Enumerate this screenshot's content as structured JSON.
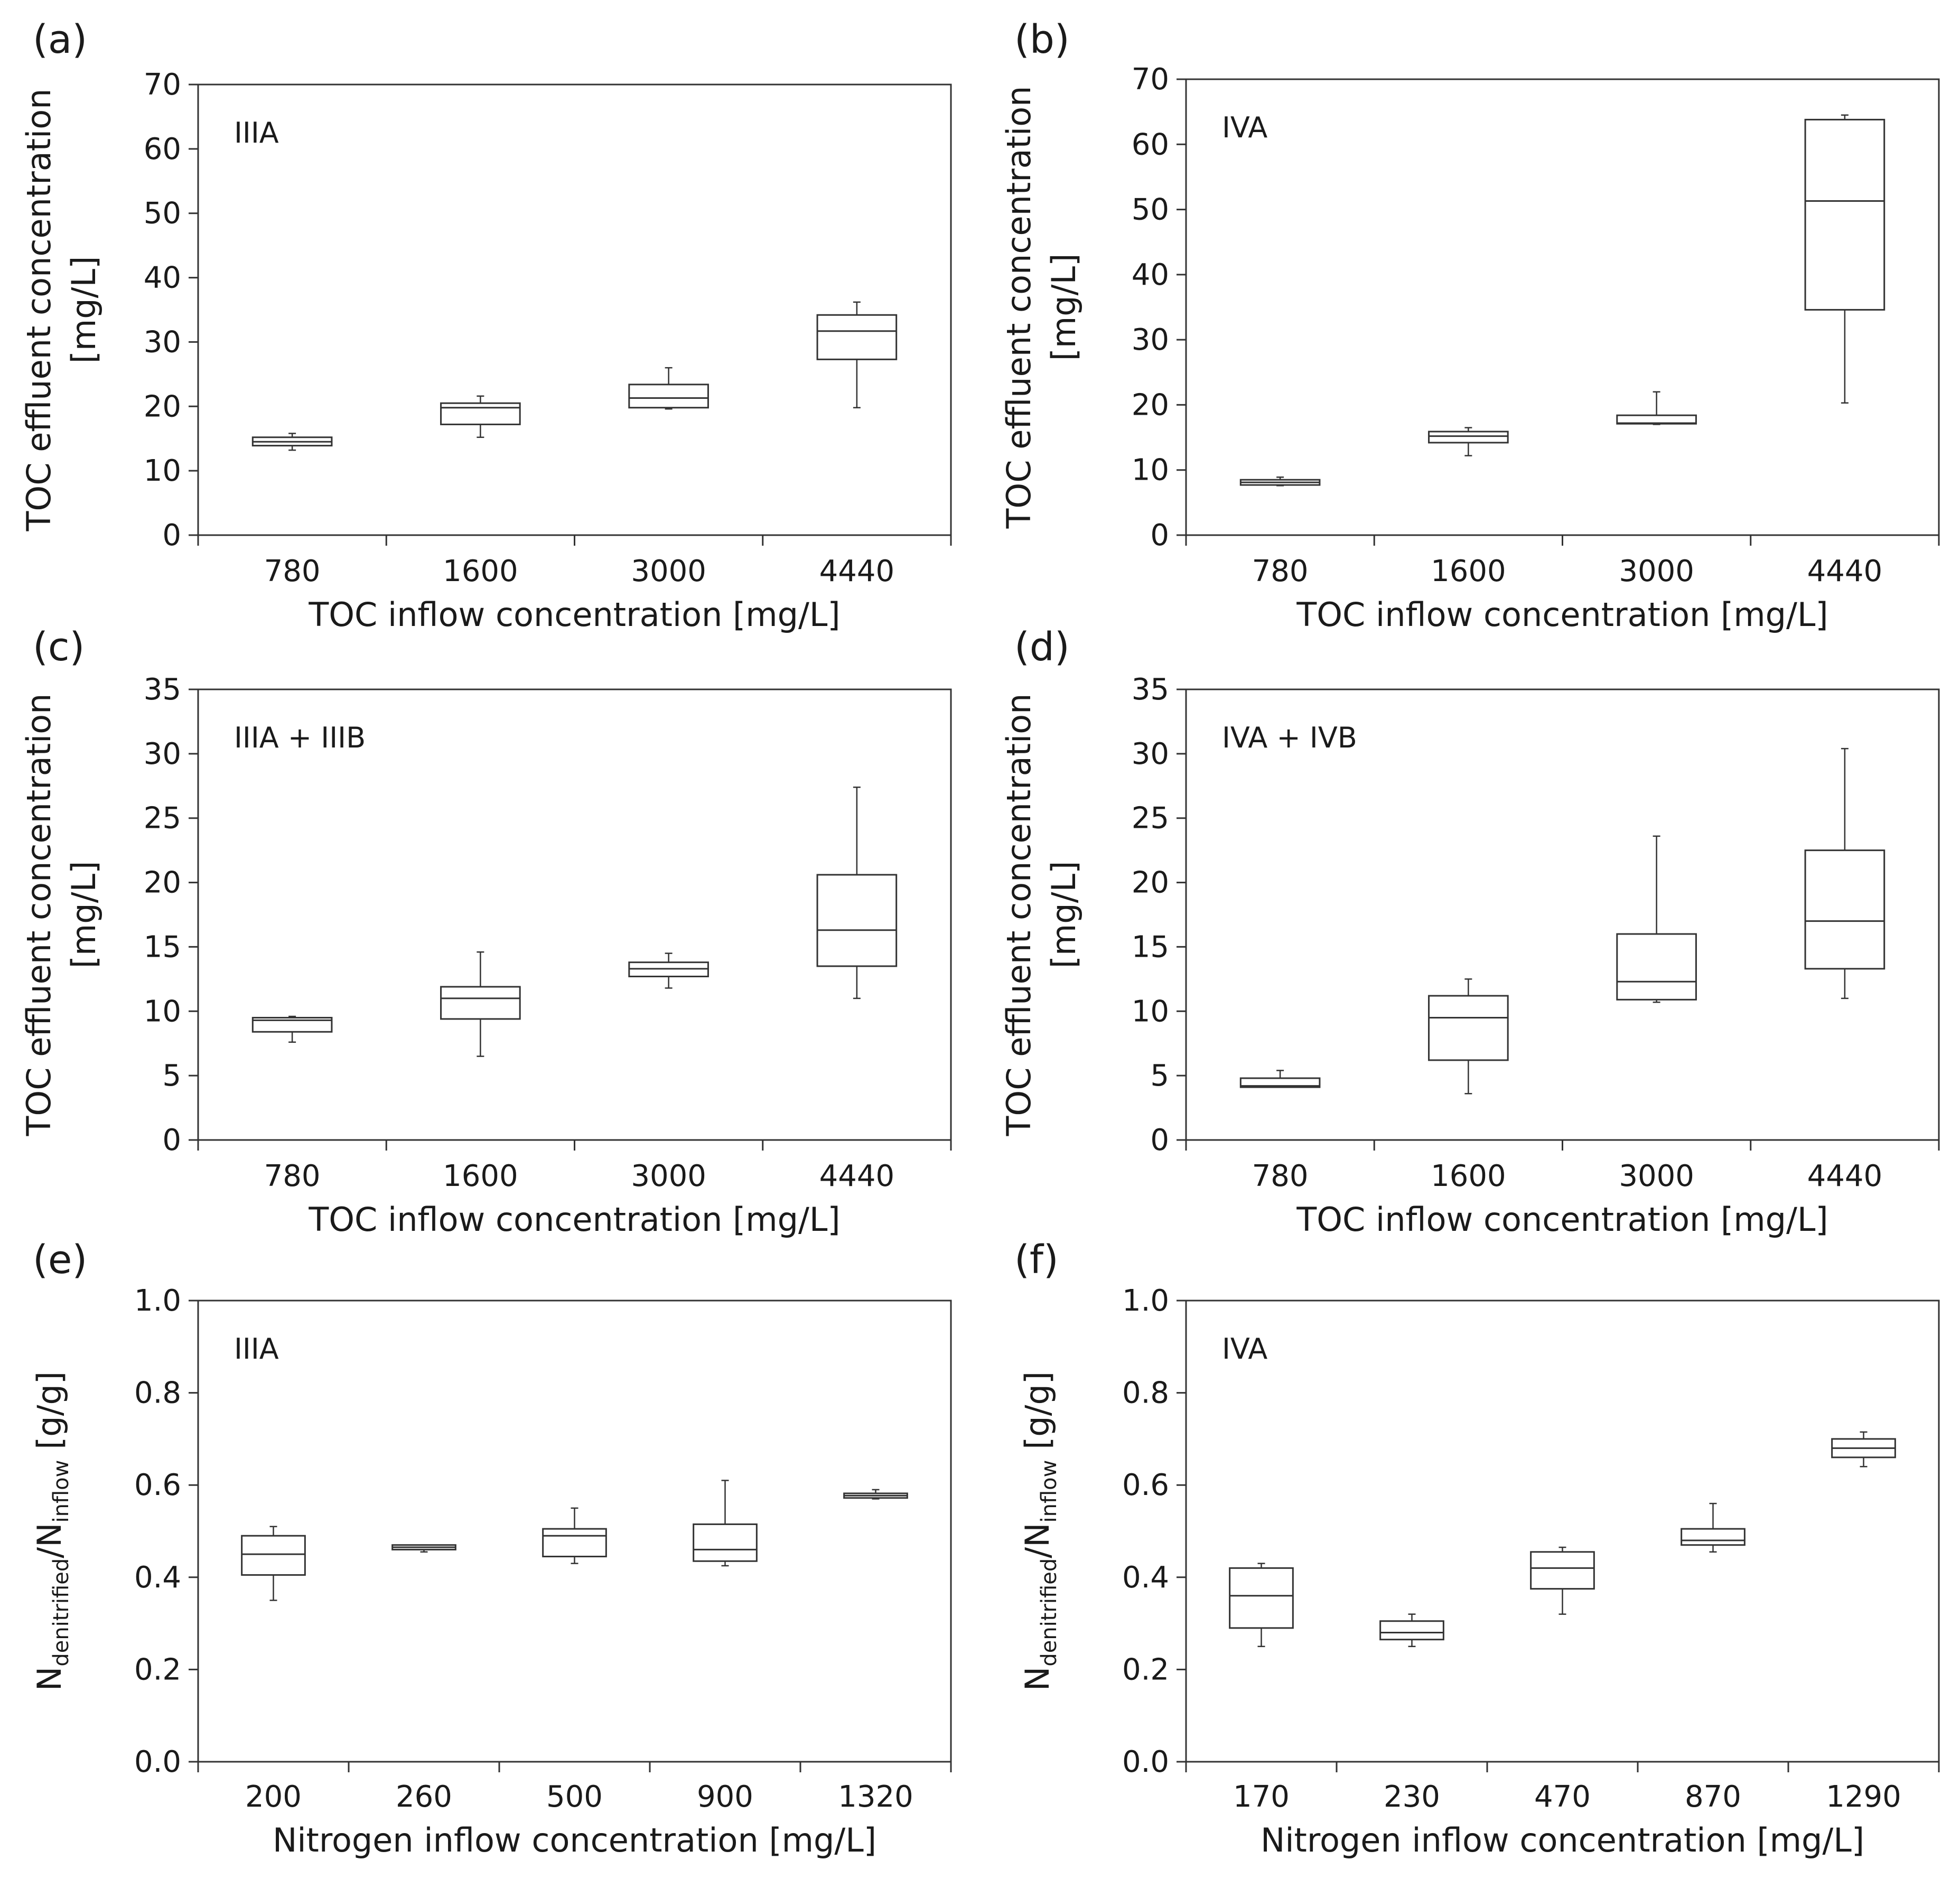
{
  "figure": {
    "colors": {
      "stroke": "#333333",
      "text": "#1a1a1a",
      "background": "#ffffff"
    }
  },
  "chart_data": [
    {
      "panel": "(a)",
      "type": "box",
      "label": "IIIA",
      "xlabel": "TOC inflow concentration [mg/L]",
      "ylabel_main": "TOC effluent concentration",
      "ylabel_unit": "[mg/L]",
      "categories": [
        "780",
        "1600",
        "3000",
        "4440"
      ],
      "ylim": [
        0,
        70
      ],
      "yticks": [
        0,
        10,
        20,
        30,
        40,
        50,
        60,
        70
      ],
      "ytick_labels": [
        "0",
        "10",
        "20",
        "30",
        "40",
        "50",
        "60",
        "70"
      ],
      "boxes": [
        {
          "category": "780",
          "min": 13.2,
          "q1": 13.9,
          "median": 14.5,
          "q3": 15.2,
          "max": 15.8
        },
        {
          "category": "1600",
          "min": 15.2,
          "q1": 17.2,
          "median": 19.8,
          "q3": 20.5,
          "max": 21.6
        },
        {
          "category": "3000",
          "min": 19.6,
          "q1": 19.8,
          "median": 21.3,
          "q3": 23.4,
          "max": 26.0
        },
        {
          "category": "4440",
          "min": 19.8,
          "q1": 27.3,
          "median": 31.7,
          "q3": 34.2,
          "max": 36.2
        }
      ]
    },
    {
      "panel": "(b)",
      "type": "box",
      "label": "IVA",
      "xlabel": "TOC inflow concentration [mg/L]",
      "ylabel_main": "TOC effluent concentration",
      "ylabel_unit": "[mg/L]",
      "categories": [
        "780",
        "1600",
        "3000",
        "4440"
      ],
      "ylim": [
        0,
        70
      ],
      "yticks": [
        0,
        10,
        20,
        30,
        40,
        50,
        60,
        70
      ],
      "ytick_labels": [
        "0",
        "10",
        "20",
        "30",
        "40",
        "50",
        "60",
        "70"
      ],
      "boxes": [
        {
          "category": "780",
          "min": 7.6,
          "q1": 7.7,
          "median": 8.1,
          "q3": 8.5,
          "max": 8.9
        },
        {
          "category": "1600",
          "min": 12.2,
          "q1": 14.2,
          "median": 15.2,
          "q3": 15.9,
          "max": 16.5
        },
        {
          "category": "3000",
          "min": 17.0,
          "q1": 17.1,
          "median": 17.2,
          "q3": 18.4,
          "max": 22.0
        },
        {
          "category": "4440",
          "min": 20.3,
          "q1": 34.6,
          "median": 51.3,
          "q3": 63.8,
          "max": 64.5
        }
      ]
    },
    {
      "panel": "(c)",
      "type": "box",
      "label": "IIIA + IIIB",
      "xlabel": "TOC inflow concentration [mg/L]",
      "ylabel_main": "TOC effluent concentration",
      "ylabel_unit": "[mg/L]",
      "categories": [
        "780",
        "1600",
        "3000",
        "4440"
      ],
      "ylim": [
        0,
        35
      ],
      "yticks": [
        0,
        5,
        10,
        15,
        20,
        25,
        30,
        35
      ],
      "ytick_labels": [
        "0",
        "5",
        "10",
        "15",
        "20",
        "25",
        "30",
        "35"
      ],
      "boxes": [
        {
          "category": "780",
          "min": 7.6,
          "q1": 8.4,
          "median": 9.3,
          "q3": 9.5,
          "max": 9.6
        },
        {
          "category": "1600",
          "min": 6.5,
          "q1": 9.4,
          "median": 11.0,
          "q3": 11.9,
          "max": 14.6
        },
        {
          "category": "3000",
          "min": 11.8,
          "q1": 12.7,
          "median": 13.3,
          "q3": 13.8,
          "max": 14.5
        },
        {
          "category": "4440",
          "min": 11.0,
          "q1": 13.5,
          "median": 16.3,
          "q3": 20.6,
          "max": 27.4
        }
      ]
    },
    {
      "panel": "(d)",
      "type": "box",
      "label": "IVA + IVB",
      "xlabel": "TOC inflow concentration [mg/L]",
      "ylabel_main": "TOC effluent concentration",
      "ylabel_unit": "[mg/L]",
      "categories": [
        "780",
        "1600",
        "3000",
        "4440"
      ],
      "ylim": [
        0,
        35
      ],
      "yticks": [
        0,
        5,
        10,
        15,
        20,
        25,
        30,
        35
      ],
      "ytick_labels": [
        "0",
        "5",
        "10",
        "15",
        "20",
        "25",
        "30",
        "35"
      ],
      "boxes": [
        {
          "category": "780",
          "min": 4.1,
          "q1": 4.1,
          "median": 4.2,
          "q3": 4.8,
          "max": 5.4
        },
        {
          "category": "1600",
          "min": 3.6,
          "q1": 6.2,
          "median": 9.5,
          "q3": 11.2,
          "max": 12.5
        },
        {
          "category": "3000",
          "min": 10.7,
          "q1": 10.9,
          "median": 12.3,
          "q3": 16.0,
          "max": 23.6
        },
        {
          "category": "4440",
          "min": 11.0,
          "q1": 13.3,
          "median": 17.0,
          "q3": 22.5,
          "max": 30.4
        }
      ]
    },
    {
      "panel": "(e)",
      "type": "box",
      "label": "IIIA",
      "xlabel": "Nitrogen inflow concentration [mg/L]",
      "ylabel_parts": {
        "n1": "N",
        "sub1": "denitrified",
        "slash": "/N",
        "sub2": "inflow",
        "unit": " [g/g]"
      },
      "categories": [
        "200",
        "260",
        "500",
        "900",
        "1320"
      ],
      "ylim": [
        0,
        1.0
      ],
      "yticks": [
        0,
        0.2,
        0.4,
        0.6,
        0.8,
        1.0
      ],
      "ytick_labels": [
        "0.0",
        "0.2",
        "0.4",
        "0.6",
        "0.8",
        "1.0"
      ],
      "boxes": [
        {
          "category": "200",
          "min": 0.35,
          "q1": 0.405,
          "median": 0.45,
          "q3": 0.49,
          "max": 0.51
        },
        {
          "category": "260",
          "min": 0.455,
          "q1": 0.46,
          "median": 0.465,
          "q3": 0.47,
          "max": 0.47
        },
        {
          "category": "500",
          "min": 0.43,
          "q1": 0.445,
          "median": 0.49,
          "q3": 0.505,
          "max": 0.55
        },
        {
          "category": "900",
          "min": 0.425,
          "q1": 0.435,
          "median": 0.46,
          "q3": 0.515,
          "max": 0.61
        },
        {
          "category": "1320",
          "min": 0.57,
          "q1": 0.572,
          "median": 0.577,
          "q3": 0.582,
          "max": 0.59
        }
      ]
    },
    {
      "panel": "(f)",
      "type": "box",
      "label": "IVA",
      "xlabel": "Nitrogen inflow concentration [mg/L]",
      "ylabel_parts": {
        "n1": "N",
        "sub1": "denitrified",
        "slash": "/N",
        "sub2": "inflow",
        "unit": " [g/g]"
      },
      "categories": [
        "170",
        "230",
        "470",
        "870",
        "1290"
      ],
      "ylim": [
        0,
        1.0
      ],
      "yticks": [
        0,
        0.2,
        0.4,
        0.6,
        0.8,
        1.0
      ],
      "ytick_labels": [
        "0.0",
        "0.2",
        "0.4",
        "0.6",
        "0.8",
        "1.0"
      ],
      "boxes": [
        {
          "category": "170",
          "min": 0.25,
          "q1": 0.29,
          "median": 0.36,
          "q3": 0.42,
          "max": 0.43
        },
        {
          "category": "230",
          "min": 0.25,
          "q1": 0.265,
          "median": 0.28,
          "q3": 0.305,
          "max": 0.32
        },
        {
          "category": "470",
          "min": 0.32,
          "q1": 0.375,
          "median": 0.42,
          "q3": 0.455,
          "max": 0.465
        },
        {
          "category": "870",
          "min": 0.455,
          "q1": 0.47,
          "median": 0.48,
          "q3": 0.505,
          "max": 0.56
        },
        {
          "category": "1290",
          "min": 0.64,
          "q1": 0.66,
          "median": 0.68,
          "q3": 0.7,
          "max": 0.715
        }
      ]
    }
  ]
}
